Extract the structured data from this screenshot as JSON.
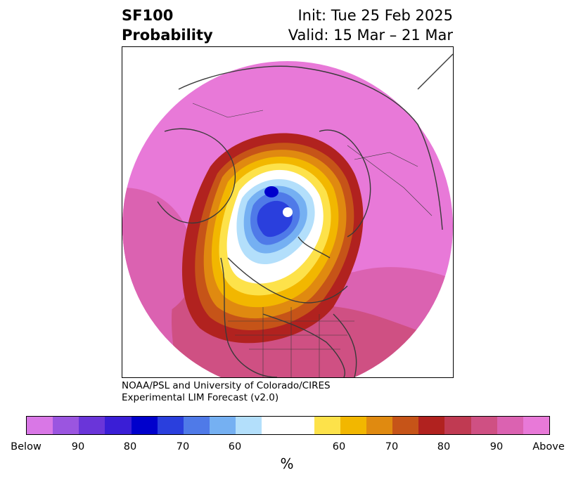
{
  "header": {
    "title_line1": "SF100",
    "title_line2": "Probability",
    "init": "Init: Tue 25 Feb 2025",
    "valid": "Valid: 15 Mar – 21 Mar"
  },
  "credit": {
    "line1": "NOAA/PSL and University of Colorado/CIRES",
    "line2": "Experimental LIM Forecast (v2.0)"
  },
  "colorbar": {
    "unit": "%",
    "tick_labels": [
      "Below",
      "90",
      "80",
      "70",
      "60",
      "60",
      "70",
      "80",
      "90",
      "Above"
    ],
    "colors": [
      "#d977e6",
      "#9b55e0",
      "#6a35d9",
      "#3a1ed6",
      "#0000cc",
      "#2a3fdd",
      "#4f7ae8",
      "#75b0f2",
      "#b3dffb",
      "#ffffff",
      "#fde24a",
      "#f2b700",
      "#e08a10",
      "#c65418",
      "#b1221f",
      "#c03a52",
      "#cf5083",
      "#db62b1",
      "#e879d8"
    ]
  },
  "map": {
    "projection": "north-polar stereographic",
    "palette": {
      "above": "#e879d8",
      "p90": "#db62b1",
      "p80": "#cf5083",
      "p75": "#c03a52",
      "p70": "#b1221f",
      "orange_dark": "#c65418",
      "orange": "#e08a10",
      "gold": "#f2b700",
      "yellow": "#fde24a",
      "neutral": "#ffffff",
      "light_blue": "#b3dffb",
      "sky_blue": "#75b0f2",
      "mid_blue": "#4f7ae8",
      "royal_blue": "#2a3fdd",
      "deep_blue": "#0000cc",
      "coast": "#3a3a3a"
    }
  }
}
